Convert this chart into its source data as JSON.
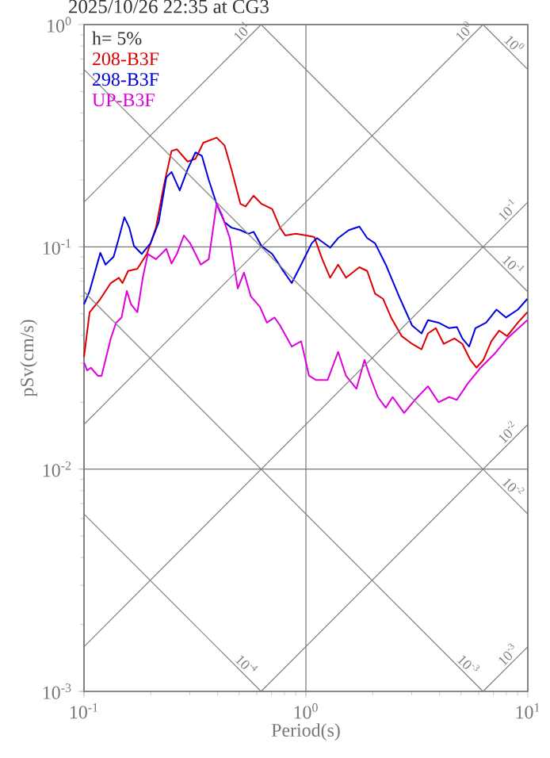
{
  "chart_data": {
    "type": "line",
    "title": "2025/10/26 22:35 at CG3",
    "xlabel": "Period(s)",
    "ylabel": "pSv(cm/s)",
    "annotations": [
      "h= 5%"
    ],
    "log": "xy",
    "grid": true,
    "legend": "top left",
    "xlim": [
      0.1,
      10
    ],
    "ylim": [
      0.001,
      1
    ],
    "xticks": [
      {
        "value": 0.1,
        "label": "10$^{-1}$"
      },
      {
        "value": 1,
        "label": "10$^{0}$"
      },
      {
        "value": 10,
        "label": "10$^{1}$"
      }
    ],
    "yticks": [
      {
        "value": 0.001,
        "label": "10$^{-3}$"
      },
      {
        "value": 0.01,
        "label": "10$^{-2}$"
      },
      {
        "value": 0.1,
        "label": "10$^{-1}$"
      },
      {
        "value": 1,
        "label": "10$^{0}$"
      }
    ],
    "series": [
      {
        "name": "208-B3F",
        "color": "#dd0000",
        "x": [
          0.1,
          0.106,
          0.1185,
          0.132,
          0.1436,
          0.149,
          0.158,
          0.174,
          0.192,
          0.211,
          0.229,
          0.248,
          0.262,
          0.293,
          0.318,
          0.345,
          0.396,
          0.43,
          0.462,
          0.507,
          0.535,
          0.581,
          0.631,
          0.705,
          0.765,
          0.807,
          0.902,
          1.005,
          1.091,
          1.185,
          1.286,
          1.397,
          1.516,
          1.742,
          1.889,
          2.05,
          2.23,
          2.42,
          2.7,
          3.01,
          3.32,
          3.55,
          3.85,
          4.18,
          4.67,
          5.07,
          5.51,
          5.87,
          6.31,
          6.85,
          7.43,
          8.07,
          9.02,
          9.95
        ],
        "values": [
          0.0319,
          0.0508,
          0.0583,
          0.0687,
          0.0726,
          0.0687,
          0.0779,
          0.0797,
          0.0929,
          0.122,
          0.189,
          0.27,
          0.275,
          0.242,
          0.249,
          0.294,
          0.31,
          0.286,
          0.223,
          0.156,
          0.152,
          0.17,
          0.156,
          0.148,
          0.122,
          0.1125,
          0.1145,
          0.1125,
          0.1107,
          0.088,
          0.0726,
          0.0832,
          0.0726,
          0.081,
          0.0779,
          0.0616,
          0.0583,
          0.0481,
          0.0397,
          0.0366,
          0.0346,
          0.0408,
          0.0431,
          0.0366,
          0.0387,
          0.0366,
          0.031,
          0.0286,
          0.031,
          0.0376,
          0.042,
          0.0397,
          0.0456,
          0.0508
        ]
      },
      {
        "name": "298-B3F",
        "color": "#0000dd",
        "x": [
          0.1,
          0.106,
          0.1185,
          0.125,
          0.136,
          0.1436,
          0.152,
          0.16,
          0.168,
          0.182,
          0.1995,
          0.217,
          0.235,
          0.248,
          0.27,
          0.293,
          0.318,
          0.34,
          0.365,
          0.396,
          0.43,
          0.462,
          0.507,
          0.551,
          0.581,
          0.631,
          0.705,
          0.785,
          0.863,
          0.952,
          1.062,
          1.122,
          1.286,
          1.397,
          1.56,
          1.742,
          1.889,
          2.05,
          2.29,
          2.63,
          3.01,
          3.32,
          3.55,
          3.96,
          4.42,
          4.79,
          5.07,
          5.44,
          5.81,
          6.49,
          7.23,
          7.98,
          9.02,
          9.95
        ],
        "values": [
          0.0551,
          0.0633,
          0.094,
          0.0832,
          0.0903,
          0.1095,
          0.136,
          0.122,
          0.1009,
          0.0929,
          0.1037,
          0.129,
          0.2056,
          0.2173,
          0.1795,
          0.223,
          0.266,
          0.2564,
          0.2,
          0.156,
          0.129,
          0.122,
          0.1189,
          0.1145,
          0.1169,
          0.1009,
          0.0929,
          0.0788,
          0.0687,
          0.0832,
          0.1037,
          0.1095,
          0.0992,
          0.1095,
          0.1189,
          0.1234,
          0.1095,
          0.1037,
          0.0832,
          0.0598,
          0.0443,
          0.0408,
          0.0468,
          0.0456,
          0.0431,
          0.0436,
          0.0387,
          0.0356,
          0.0431,
          0.0456,
          0.0522,
          0.0481,
          0.0522,
          0.0583
        ]
      },
      {
        "name": "UP-B3F",
        "color": "#dd00dd",
        "x": [
          0.1,
          0.1033,
          0.1074,
          0.1154,
          0.12,
          0.132,
          0.1396,
          0.1476,
          0.156,
          0.163,
          0.174,
          0.184,
          0.194,
          0.211,
          0.223,
          0.235,
          0.248,
          0.262,
          0.282,
          0.301,
          0.318,
          0.336,
          0.365,
          0.396,
          0.418,
          0.454,
          0.493,
          0.526,
          0.565,
          0.621,
          0.667,
          0.723,
          0.765,
          0.863,
          0.952,
          1.033,
          1.109,
          1.253,
          1.397,
          1.516,
          1.69,
          1.837,
          1.94,
          2.11,
          2.29,
          2.46,
          2.77,
          3.1,
          3.55,
          3.96,
          4.42,
          4.79,
          5.35,
          6.13,
          7.04,
          8.07,
          9.95
        ],
        "values": [
          0.0302,
          0.0278,
          0.0286,
          0.0263,
          0.0263,
          0.0387,
          0.0456,
          0.0481,
          0.0633,
          0.0551,
          0.0508,
          0.0726,
          0.0929,
          0.088,
          0.0929,
          0.098,
          0.0841,
          0.0929,
          0.1125,
          0.1037,
          0.0929,
          0.0832,
          0.088,
          0.156,
          0.14,
          0.1095,
          0.065,
          0.0766,
          0.0598,
          0.0537,
          0.0456,
          0.0481,
          0.0443,
          0.0356,
          0.0376,
          0.0263,
          0.0252,
          0.0252,
          0.0337,
          0.0263,
          0.023,
          0.031,
          0.0263,
          0.0211,
          0.0189,
          0.0211,
          0.0179,
          0.0205,
          0.0236,
          0.02,
          0.0211,
          0.0205,
          0.0242,
          0.0286,
          0.0328,
          0.0387,
          0.0468
        ]
      },
      {
        "name": "10$^{1}$",
        "color": "#808080",
        "x": [
          0.1,
          0.628
        ],
        "values": [
          0.159,
          1
        ]
      },
      {
        "name": "10$^{0}$",
        "color": "#808080",
        "x": [
          0.1,
          6.28
        ],
        "values": [
          0.0159,
          1
        ]
      },
      {
        "name": "10$^{-1}$",
        "color": "#808080",
        "x": [
          0.1,
          10
        ],
        "values": [
          0.00159,
          0.159
        ]
      },
      {
        "name": "10$^{-2}$",
        "color": "#808080",
        "x": [
          0.628,
          10
        ],
        "values": [
          0.001,
          0.0159
        ]
      },
      {
        "name": "10$^{-3}$",
        "color": "#808080",
        "x": [
          6.28,
          10
        ],
        "values": [
          0.001,
          0.00159
        ]
      },
      {
        "name": "10$^{0}$",
        "color": "#808080",
        "x": [
          6.28,
          10
        ],
        "values": [
          1,
          0.628
        ]
      },
      {
        "name": "10$^{-1}$",
        "color": "#808080",
        "x": [
          0.628,
          10
        ],
        "values": [
          1,
          0.0628
        ]
      },
      {
        "name": "10$^{-2}$",
        "color": "#808080",
        "x": [
          0.1,
          10
        ],
        "values": [
          0.628,
          0.00628
        ]
      },
      {
        "name": "10$^{-3}$",
        "color": "#808080",
        "x": [
          0.1,
          6.28
        ],
        "values": [
          0.0628,
          0.001
        ]
      },
      {
        "name": "10$^{-4}$",
        "color": "#808080",
        "x": [
          0.1,
          0.628
        ],
        "values": [
          0.00628,
          0.001
        ]
      }
    ]
  }
}
